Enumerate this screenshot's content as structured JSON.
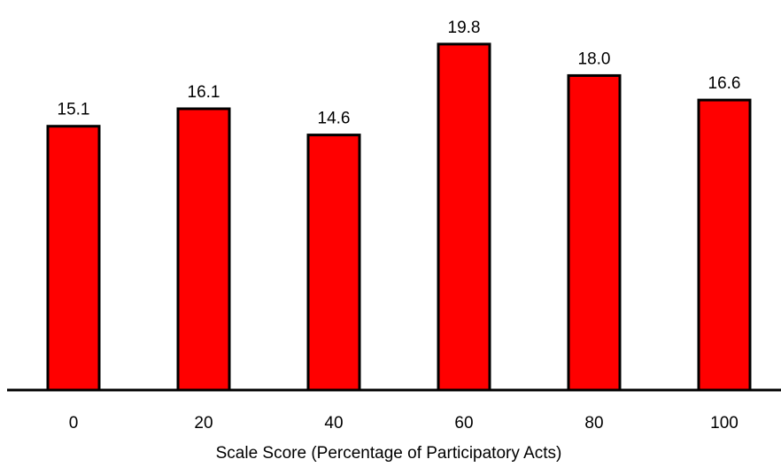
{
  "chart_data": {
    "type": "bar",
    "categories": [
      "0",
      "20",
      "40",
      "60",
      "80",
      "100"
    ],
    "values": [
      15.1,
      16.1,
      14.6,
      19.8,
      18.0,
      16.6
    ],
    "value_labels": [
      "15.1",
      "16.1",
      "14.6",
      "19.8",
      "18.0",
      "16.6"
    ],
    "title": "",
    "xlabel": "Scale Score (Percentage of Participatory Acts)",
    "ylabel": "",
    "ylim": [
      0,
      20.3
    ],
    "grid": false,
    "colors": {
      "bar_fill": "#ff0000",
      "bar_stroke": "#000000"
    }
  }
}
